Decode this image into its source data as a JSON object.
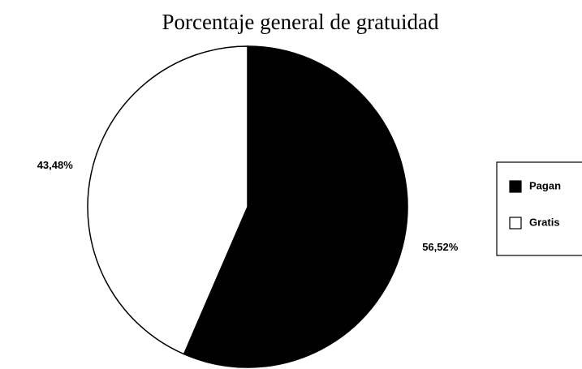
{
  "chart_data": {
    "type": "pie",
    "title": "Porcentaje general de gratuidad",
    "categories": [
      "Pagan",
      "Gratis"
    ],
    "values": [
      56.52,
      43.48
    ],
    "value_labels": [
      "56,52%",
      "43,48%"
    ],
    "colors": [
      "#000000",
      "#ffffff"
    ],
    "legend": "right"
  }
}
